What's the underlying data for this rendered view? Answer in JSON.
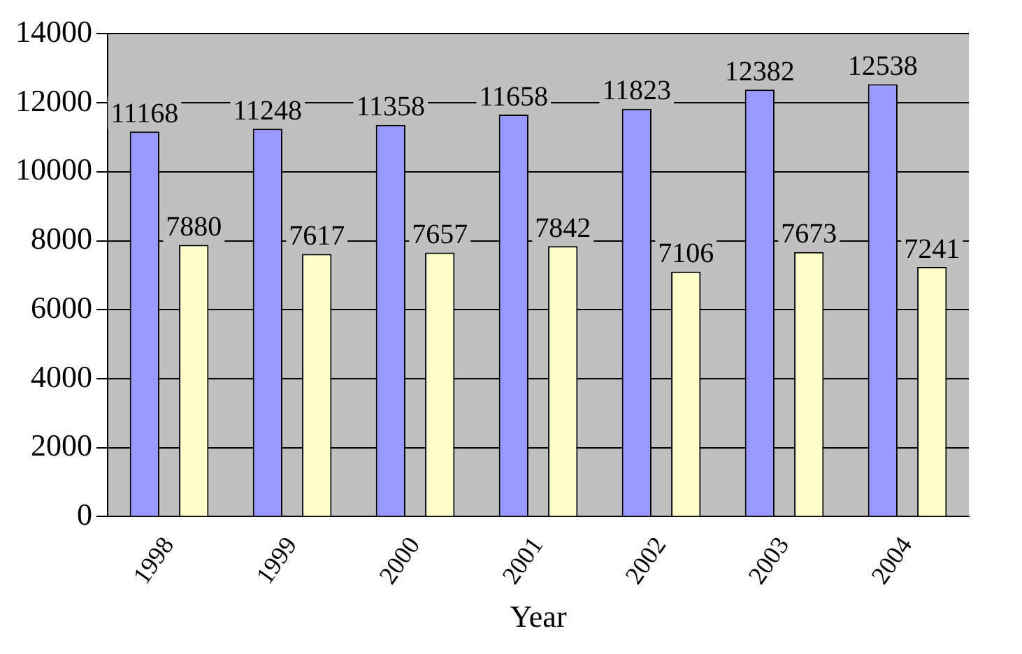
{
  "chart_data": {
    "type": "bar",
    "xlabel": "Year",
    "categories": [
      "1998",
      "1999",
      "2000",
      "2001",
      "2002",
      "2003",
      "2004"
    ],
    "series": [
      {
        "color": "#9999ff",
        "values": [
          11168,
          11248,
          11358,
          11658,
          11823,
          12382,
          12538
        ]
      },
      {
        "color": "#ffffcc",
        "values": [
          7880,
          7617,
          7657,
          7842,
          7106,
          7673,
          7241
        ]
      }
    ],
    "ylim": [
      0,
      14000
    ],
    "yticks": [
      0,
      2000,
      4000,
      6000,
      8000,
      10000,
      12000,
      14000
    ],
    "grid": "y",
    "data_labels": true,
    "legend": false
  }
}
